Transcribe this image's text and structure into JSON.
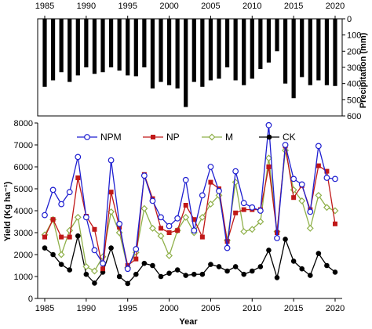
{
  "chart_data": [
    {
      "type": "bar",
      "orientation": "downward",
      "ylabel": "Precipitation (mm)",
      "ylim": [
        0,
        600
      ],
      "yticks": [
        0,
        100,
        200,
        300,
        400,
        500,
        600
      ],
      "xticks": [
        1985,
        1990,
        1995,
        2000,
        2005,
        2010,
        2015,
        2020
      ],
      "x": [
        1985,
        1986,
        1987,
        1988,
        1989,
        1990,
        1991,
        1992,
        1993,
        1994,
        1995,
        1996,
        1997,
        1998,
        1999,
        2000,
        2001,
        2002,
        2003,
        2004,
        2005,
        2006,
        2007,
        2008,
        2009,
        2010,
        2011,
        2012,
        2013,
        2014,
        2015,
        2016,
        2017,
        2018,
        2019,
        2020
      ],
      "values": [
        420,
        380,
        330,
        390,
        350,
        300,
        340,
        330,
        300,
        320,
        350,
        355,
        300,
        430,
        390,
        410,
        430,
        545,
        390,
        420,
        380,
        370,
        300,
        380,
        410,
        370,
        310,
        270,
        200,
        400,
        490,
        360,
        410,
        380,
        410,
        415
      ]
    },
    {
      "type": "line",
      "xlabel": "Year",
      "ylabel": "Yield (Kg ha⁻¹)",
      "xlim": [
        1985,
        2020
      ],
      "ylim": [
        0,
        8000
      ],
      "yticks": [
        0,
        1000,
        2000,
        3000,
        4000,
        5000,
        6000,
        7000,
        8000
      ],
      "xticks": [
        1985,
        1990,
        1995,
        2000,
        2005,
        2010,
        2015,
        2020
      ],
      "legend": "top",
      "x": [
        1985,
        1986,
        1987,
        1988,
        1989,
        1990,
        1991,
        1992,
        1993,
        1994,
        1995,
        1996,
        1997,
        1998,
        1999,
        2000,
        2001,
        2002,
        2003,
        2004,
        2005,
        2006,
        2007,
        2008,
        2009,
        2010,
        2011,
        2012,
        2013,
        2014,
        2015,
        2016,
        2017,
        2018,
        2019,
        2020
      ],
      "series": [
        {
          "name": "NPM",
          "color": "#1f1fd0",
          "marker": "open-circle",
          "values": [
            3800,
            4950,
            4300,
            4850,
            6450,
            3700,
            2200,
            1600,
            6300,
            3400,
            1350,
            2250,
            5600,
            4450,
            3700,
            3300,
            3650,
            5400,
            3100,
            4700,
            6000,
            4900,
            2300,
            5800,
            4350,
            4150,
            4000,
            7900,
            2750,
            7000,
            5450,
            5200,
            3950,
            6950,
            5500,
            5450
          ]
        },
        {
          "name": "NP",
          "color": "#c01818",
          "marker": "filled-square",
          "values": [
            2800,
            3600,
            2800,
            2800,
            5500,
            3750,
            3150,
            1350,
            4850,
            3250,
            1500,
            1800,
            5650,
            4550,
            3200,
            3000,
            3100,
            4250,
            3600,
            2800,
            5300,
            5000,
            2600,
            3900,
            4050,
            4050,
            4050,
            6000,
            3000,
            6950,
            4600,
            5150,
            4050,
            6050,
            5800,
            3400
          ]
        },
        {
          "name": "M",
          "color": "#8fb04a",
          "marker": "open-diamond",
          "values": [
            2900,
            3600,
            2000,
            3100,
            3700,
            1450,
            1250,
            1900,
            3950,
            3000,
            1400,
            2100,
            4100,
            3200,
            2850,
            1950,
            3100,
            3700,
            3000,
            3700,
            4300,
            4700,
            2650,
            5300,
            3050,
            3150,
            3500,
            6400,
            3050,
            6750,
            4950,
            4450,
            3200,
            4700,
            4150,
            4000
          ]
        },
        {
          "name": "CK",
          "color": "#000000",
          "marker": "filled-circle",
          "values": [
            2300,
            2000,
            1550,
            1300,
            2850,
            1100,
            700,
            1200,
            2300,
            1000,
            680,
            1100,
            1600,
            1500,
            1000,
            1150,
            1300,
            1050,
            1100,
            1100,
            1550,
            1450,
            1250,
            1450,
            1100,
            1250,
            1450,
            2200,
            950,
            2700,
            1700,
            1350,
            1050,
            2050,
            1500,
            1200
          ]
        }
      ]
    }
  ]
}
